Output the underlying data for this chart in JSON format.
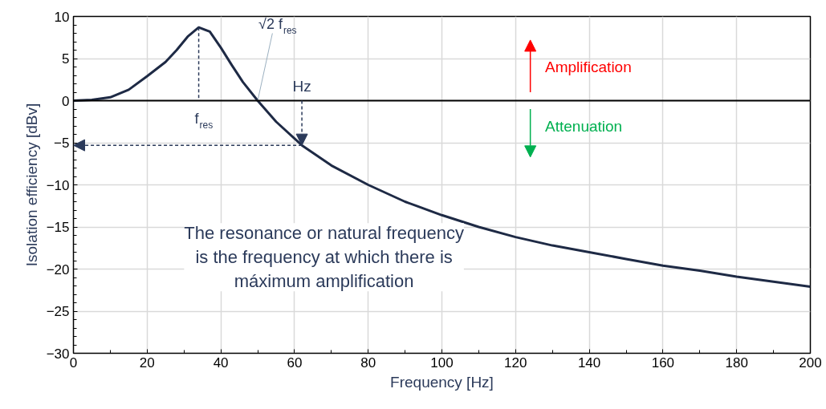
{
  "chart_data": {
    "type": "line",
    "xlabel": "Frequency [Hz]",
    "ylabel": "Isolation efficiency [dBv]",
    "x": [
      0,
      5,
      10,
      15,
      20,
      25,
      28,
      31,
      34,
      37,
      40,
      43,
      46,
      50,
      55,
      62,
      70,
      80,
      90,
      100,
      110,
      120,
      130,
      140,
      150,
      160,
      170,
      180,
      190,
      200
    ],
    "series": [
      {
        "color": "#1e2a45",
        "values": [
          0,
          0.1,
          0.4,
          1.3,
          2.9,
          4.6,
          6.0,
          7.6,
          8.7,
          8.2,
          6.3,
          4.2,
          2.2,
          0,
          -2.5,
          -5.3,
          -7.7,
          -10.0,
          -12.0,
          -13.6,
          -15.0,
          -16.2,
          -17.2,
          -18.0,
          -18.8,
          -19.6,
          -20.2,
          -20.9,
          -21.5,
          -22.1
        ]
      }
    ],
    "xlim": [
      0,
      200
    ],
    "ylim": [
      -30,
      10
    ],
    "xticks": [
      0,
      20,
      40,
      60,
      80,
      100,
      120,
      140,
      160,
      180,
      200
    ],
    "yticks": [
      -30,
      -25,
      -20,
      -15,
      -10,
      -5,
      0,
      5,
      10
    ],
    "grid": true,
    "marker": "none",
    "line_style": "solid",
    "ref_lines": [
      {
        "axis": "y",
        "value": 0,
        "color": "#000000"
      }
    ],
    "annotations": [
      {
        "text": "f$_{res}$",
        "x": 34,
        "y": 8.7
      },
      {
        "text": "√2 f$_{res}$",
        "x": 50,
        "y": 0
      },
      {
        "text": "Hz",
        "x": 62,
        "y": -5.3
      },
      "Amplification",
      "Attenuation",
      "The resonance or natural frequency\nis the frequency at which there is\nmáximum amplification"
    ]
  }
}
